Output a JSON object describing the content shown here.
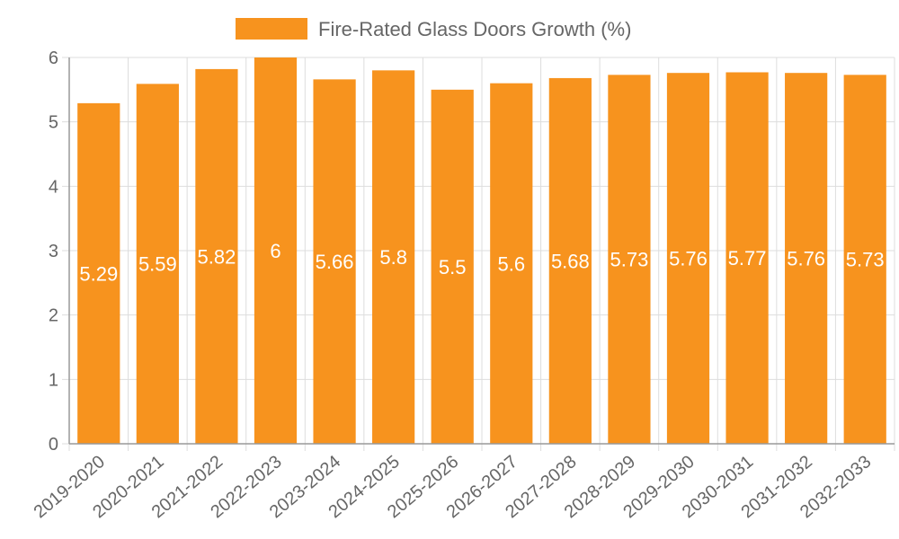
{
  "colors": {
    "bar": "#f7931e",
    "grid": "#dddddd",
    "axis": "#999999",
    "text": "#666666",
    "label": "#ffffff"
  },
  "chart_data": {
    "type": "bar",
    "title": "",
    "xlabel": "",
    "ylabel": "",
    "categories": [
      "2019-2020",
      "2020-2021",
      "2021-2022",
      "2022-2023",
      "2023-2024",
      "2024-2025",
      "2025-2026",
      "2026-2027",
      "2027-2028",
      "2028-2029",
      "2029-2030",
      "2030-2031",
      "2031-2032",
      "2032-2033"
    ],
    "series": [
      {
        "name": "Fire-Rated Glass Doors Growth (%)",
        "values": [
          5.29,
          5.59,
          5.82,
          6,
          5.66,
          5.8,
          5.5,
          5.6,
          5.68,
          5.73,
          5.76,
          5.77,
          5.76,
          5.73
        ],
        "labels": [
          "5.29",
          "5.59",
          "5.82",
          "6",
          "5.66",
          "5.8",
          "5.5",
          "5.6",
          "5.68",
          "5.73",
          "5.76",
          "5.77",
          "5.76",
          "5.73"
        ]
      }
    ],
    "ylim": [
      0,
      6
    ],
    "yticks": [
      "0",
      "1",
      "2",
      "3",
      "4",
      "5",
      "6"
    ],
    "grid": true,
    "legend": "top-center"
  }
}
